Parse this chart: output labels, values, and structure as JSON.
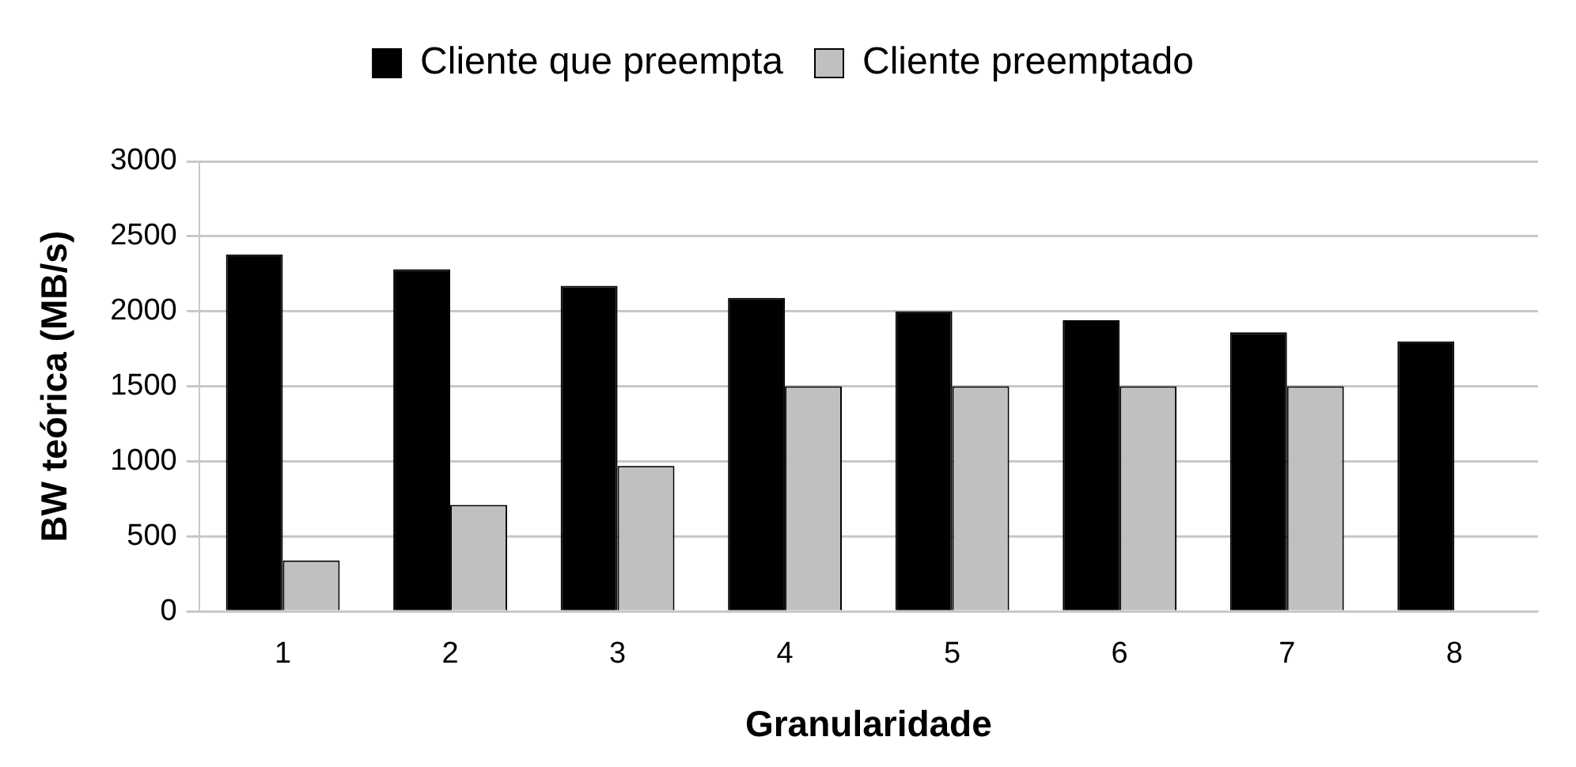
{
  "chart_data": {
    "type": "bar",
    "xlabel": "Granularidade",
    "ylabel": "BW teórica (MB/s)",
    "categories": [
      "1",
      "2",
      "3",
      "4",
      "5",
      "6",
      "7",
      "8"
    ],
    "series": [
      {
        "name": "Cliente que preempta",
        "color": "#000000",
        "values": [
          2380,
          2280,
          2170,
          2090,
          2000,
          1940,
          1860,
          1800
        ]
      },
      {
        "name": "Cliente preemptado",
        "color": "#c0c0c0",
        "values": [
          340,
          710,
          970,
          1500,
          1500,
          1500,
          1500,
          null
        ]
      }
    ],
    "ylim": [
      0,
      3000
    ],
    "yticks": [
      0,
      500,
      1000,
      1500,
      2000,
      2500,
      3000
    ],
    "grid": "y",
    "legend": "top"
  }
}
